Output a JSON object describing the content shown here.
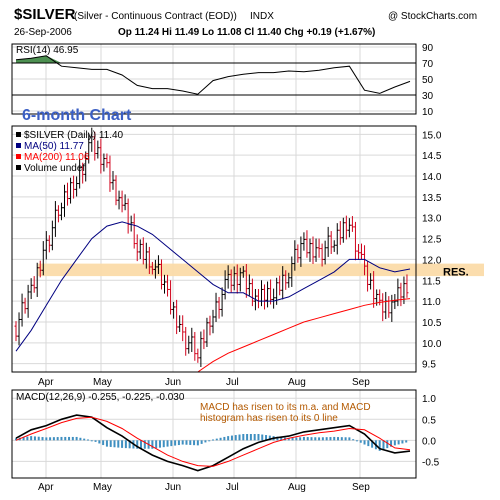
{
  "header": {
    "symbol": "$SILVER",
    "description": "(Silver - Continuous Contract (EOD))",
    "exchange": "INDX",
    "source": "@ StockCharts.com",
    "date": "26-Sep-2006",
    "ohlc_text": "Op 11.24 Hi 11.49 Lo 11.08 Cl 11.40 Chg +0.19 (+1.67%)"
  },
  "chart_data": [
    {
      "type": "line",
      "panel": "rsi",
      "title": "RSI(14) 46.95",
      "yticks": [
        "90",
        "70",
        "50",
        "30",
        "10"
      ],
      "ylim": [
        10,
        90
      ],
      "reference_lines": [
        70,
        30
      ],
      "x": [
        "Mar-31",
        "Apr-07",
        "Apr-14",
        "Apr-21",
        "Apr-28",
        "May-05",
        "May-12",
        "May-19",
        "May-26",
        "Jun-02",
        "Jun-09",
        "Jun-16",
        "Jun-23",
        "Jun-30",
        "Jul-07",
        "Jul-14",
        "Jul-21",
        "Jul-28",
        "Aug-04",
        "Aug-11",
        "Aug-18",
        "Aug-25",
        "Sep-01",
        "Sep-08",
        "Sep-15",
        "Sep-22",
        "Sep-26"
      ],
      "values": [
        74,
        76,
        79,
        66,
        64,
        62,
        62,
        55,
        42,
        38,
        38,
        35,
        31,
        48,
        53,
        56,
        58,
        58,
        60,
        59,
        61,
        64,
        66,
        36,
        32,
        40,
        47
      ]
    },
    {
      "type": "ohlc",
      "panel": "price",
      "annotation_title": "6-month Chart",
      "legend": [
        "$SILVER (Daily) 11.40",
        "MA(50) 11.77",
        "MA(200) 11.06",
        "Volume undef"
      ],
      "resistance_label": "RES.",
      "resistance_band": [
        11.6,
        11.9
      ],
      "xticks": [
        "Apr",
        "May",
        "Jun",
        "Jul",
        "Aug",
        "Sep"
      ],
      "yticks": [
        "15.0",
        "14.5",
        "14.0",
        "13.5",
        "13.0",
        "12.5",
        "12.0",
        "11.5",
        "11.0",
        "10.5",
        "10.0",
        "9.5"
      ],
      "ylim": [
        9.3,
        15.2
      ],
      "x": [
        "Mar-31",
        "Apr-07",
        "Apr-14",
        "Apr-21",
        "Apr-28",
        "May-05",
        "May-12",
        "May-19",
        "May-26",
        "Jun-02",
        "Jun-09",
        "Jun-16",
        "Jun-23",
        "Jun-30",
        "Jul-07",
        "Jul-14",
        "Jul-21",
        "Jul-28",
        "Aug-04",
        "Aug-11",
        "Aug-18",
        "Aug-25",
        "Sep-01",
        "Sep-08",
        "Sep-15",
        "Sep-22",
        "Sep-26"
      ],
      "close": [
        10.4,
        11.2,
        12.4,
        13.3,
        14.0,
        14.7,
        14.2,
        13.3,
        12.3,
        12.0,
        11.1,
        10.2,
        9.7,
        10.8,
        11.4,
        11.6,
        11.0,
        11.2,
        11.8,
        12.3,
        12.2,
        12.4,
        13.0,
        11.6,
        10.9,
        11.0,
        11.4
      ],
      "series": [
        {
          "name": "MA(50)",
          "color": "#000080",
          "values": [
            9.8,
            10.3,
            10.9,
            11.5,
            12.0,
            12.5,
            12.8,
            12.9,
            12.8,
            12.6,
            12.3,
            12.0,
            11.7,
            11.4,
            11.2,
            11.2,
            11.0,
            11.0,
            11.1,
            11.3,
            11.5,
            11.7,
            12.0,
            12.0,
            11.8,
            11.7,
            11.77
          ]
        },
        {
          "name": "MA(200)",
          "color": "#ff0000",
          "values": [
            null,
            null,
            null,
            null,
            null,
            null,
            null,
            null,
            null,
            null,
            null,
            null,
            9.3,
            9.55,
            9.75,
            9.9,
            10.05,
            10.2,
            10.35,
            10.5,
            10.6,
            10.7,
            10.8,
            10.9,
            10.97,
            11.02,
            11.06
          ]
        }
      ]
    },
    {
      "type": "line",
      "panel": "macd",
      "title": "MACD(12,26,9) -0.255, -0.225, -0.030",
      "annotation": [
        "MACD has risen to its m.a. and MACD",
        "histogram has risen to its 0 line"
      ],
      "yticks": [
        "1.0",
        "0.5",
        "0.0",
        "-0.5"
      ],
      "ylim": [
        -0.8,
        1.1
      ],
      "xticks": [
        "Apr",
        "May",
        "Jun",
        "Jul",
        "Aug",
        "Sep"
      ],
      "x": [
        "Mar-31",
        "Apr-07",
        "Apr-14",
        "Apr-21",
        "Apr-28",
        "May-05",
        "May-12",
        "May-19",
        "May-26",
        "Jun-02",
        "Jun-09",
        "Jun-16",
        "Jun-23",
        "Jun-30",
        "Jul-07",
        "Jul-14",
        "Jul-21",
        "Jul-28",
        "Aug-04",
        "Aug-11",
        "Aug-18",
        "Aug-25",
        "Sep-01",
        "Sep-08",
        "Sep-15",
        "Sep-22",
        "Sep-26"
      ],
      "series": [
        {
          "name": "MACD",
          "color": "#000000",
          "values": [
            0.05,
            0.25,
            0.35,
            0.5,
            0.6,
            0.55,
            0.3,
            0.1,
            -0.15,
            -0.35,
            -0.5,
            -0.6,
            -0.72,
            -0.6,
            -0.4,
            -0.2,
            -0.05,
            0.05,
            0.1,
            0.2,
            0.25,
            0.3,
            0.35,
            0.15,
            -0.2,
            -0.3,
            -0.255
          ]
        },
        {
          "name": "Signal",
          "color": "#ff0000",
          "values": [
            0.0,
            0.15,
            0.28,
            0.42,
            0.52,
            0.55,
            0.45,
            0.28,
            0.05,
            -0.15,
            -0.35,
            -0.5,
            -0.6,
            -0.62,
            -0.5,
            -0.35,
            -0.2,
            -0.05,
            0.05,
            0.12,
            0.18,
            0.22,
            0.28,
            0.25,
            0.05,
            -0.18,
            -0.225
          ]
        }
      ],
      "histogram_color": "#3f8fc0",
      "histogram": [
        0.05,
        0.1,
        0.07,
        0.08,
        0.08,
        0.0,
        -0.15,
        -0.18,
        -0.2,
        -0.2,
        -0.15,
        -0.1,
        -0.12,
        0.02,
        0.1,
        0.15,
        0.15,
        0.1,
        0.05,
        0.08,
        0.07,
        0.08,
        0.07,
        -0.1,
        -0.25,
        -0.12,
        -0.03
      ]
    }
  ]
}
